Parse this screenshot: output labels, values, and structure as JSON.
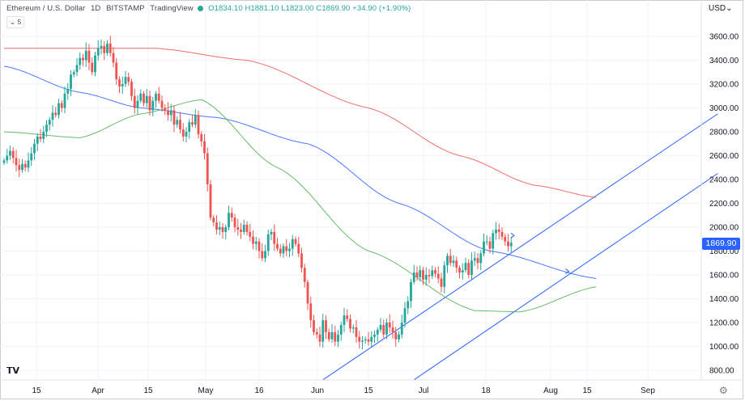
{
  "header": {
    "symbol": "Ethereum / U.S. Dollar",
    "interval": "1D",
    "exchange": "BITSTAMP",
    "platform": "TradingView",
    "open": "O1834.10",
    "high": "H1881.10",
    "low": "L1823.00",
    "close": "C1869.90",
    "change": "+34.90 (+1.90%)",
    "indicator_chip": "5",
    "currency": "USD"
  },
  "colors": {
    "up": "#26a69a",
    "down": "#ef5350",
    "ma_red": "#ef5350",
    "ma_blue": "#2962ff",
    "ma_green": "#4caf50",
    "channel": "#2962ff",
    "price_tag": "#2962ff"
  },
  "icons": {
    "logo": "tradingview-logo-icon",
    "settings": "gear-icon"
  },
  "chart_data": {
    "type": "candlestick",
    "y_axis": {
      "min": 700,
      "max": 3700,
      "ticks": [
        "3600.00",
        "3400.00",
        "3200.00",
        "3000.00",
        "2800.00",
        "2600.00",
        "2400.00",
        "2200.00",
        "2000.00",
        "1800.00",
        "1600.00",
        "1400.00",
        "1200.00",
        "1000.00",
        "800.00"
      ]
    },
    "x_axis": {
      "labels": [
        "15",
        "Apr",
        "15",
        "May",
        "16",
        "Jun",
        "15",
        "Jul",
        "18",
        "Aug",
        "15",
        "Sep"
      ]
    },
    "last_price": "1869.90",
    "closes": [
      2560,
      2600,
      2640,
      2580,
      2520,
      2480,
      2530,
      2500,
      2560,
      2620,
      2700,
      2760,
      2740,
      2800,
      2860,
      2900,
      2960,
      2940,
      3040,
      3000,
      3120,
      3160,
      3280,
      3300,
      3360,
      3420,
      3400,
      3480,
      3380,
      3300,
      3440,
      3500,
      3520,
      3460,
      3540,
      3460,
      3380,
      3240,
      3180,
      3200,
      3260,
      3220,
      3100,
      3000,
      3060,
      3120,
      3040,
      3100,
      2980,
      3060,
      3120,
      3060,
      3000,
      2980,
      2940,
      2980,
      2860,
      2900,
      2820,
      2760,
      2800,
      2880,
      2860,
      2940,
      2780,
      2720,
      2620,
      2360,
      2080,
      2040,
      1980,
      2000,
      1960,
      2000,
      2120,
      2080,
      2000,
      1980,
      1960,
      2020,
      1960,
      1920,
      1860,
      1880,
      1800,
      1740,
      1800,
      1940,
      1960,
      1860,
      1820,
      1780,
      1840,
      1800,
      1820,
      1900,
      1860,
      1780,
      1660,
      1540,
      1360,
      1220,
      1120,
      1100,
      1040,
      1220,
      1120,
      1060,
      1120,
      1040,
      1100,
      1180,
      1260,
      1230,
      1150,
      1160,
      1080,
      1040,
      1050,
      1060,
      1040,
      1080,
      1100,
      1140,
      1180,
      1100,
      1200,
      1160,
      1120,
      1060,
      1100,
      1200,
      1320,
      1380,
      1540,
      1620,
      1580,
      1640,
      1560,
      1600,
      1590,
      1640,
      1610,
      1570,
      1500,
      1680,
      1760,
      1700,
      1720,
      1660,
      1620,
      1640,
      1700,
      1600,
      1720,
      1740,
      1700,
      1780,
      1880,
      1880,
      1820,
      1950,
      1980,
      1960,
      1920,
      1880,
      1840,
      1870
    ],
    "series": [
      {
        "name": "MA-red",
        "anchors": [
          [
            0,
            3500
          ],
          [
            50,
            3500
          ],
          [
            80,
            3400
          ],
          [
            120,
            3000
          ],
          [
            150,
            2600
          ],
          [
            175,
            2350
          ],
          [
            195,
            2250
          ]
        ]
      },
      {
        "name": "MA-blue",
        "anchors": [
          [
            0,
            3350
          ],
          [
            25,
            3130
          ],
          [
            45,
            3000
          ],
          [
            70,
            2920
          ],
          [
            100,
            2700
          ],
          [
            130,
            2200
          ],
          [
            160,
            1800
          ],
          [
            195,
            1570
          ]
        ]
      },
      {
        "name": "MA-green",
        "anchors": [
          [
            0,
            2800
          ],
          [
            25,
            2750
          ],
          [
            45,
            2950
          ],
          [
            65,
            3070
          ],
          [
            90,
            2500
          ],
          [
            120,
            1800
          ],
          [
            155,
            1300
          ],
          [
            170,
            1290
          ],
          [
            195,
            1500
          ]
        ]
      }
    ],
    "channel": {
      "upper": [
        [
          105,
          720
        ],
        [
          235,
          2950
        ]
      ],
      "lower": [
        [
          135,
          720
        ],
        [
          235,
          2450
        ]
      ]
    },
    "markers": [
      [
        168,
        1930
      ],
      [
        186,
        1630
      ]
    ]
  }
}
